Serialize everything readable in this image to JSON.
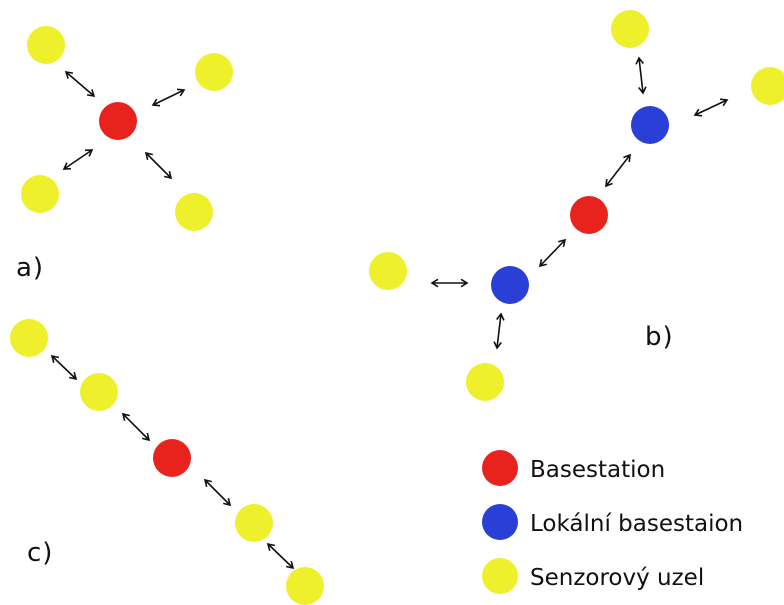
{
  "colors": {
    "basestation": "#e8231d",
    "local_basestation": "#2a3fd6",
    "sensor_node": "#eef02c"
  },
  "panels": {
    "a": {
      "label": "a)"
    },
    "b": {
      "label": "b)"
    },
    "c": {
      "label": "c)"
    }
  },
  "legend": [
    {
      "kind": "basestation",
      "label": "Basestation"
    },
    {
      "kind": "local_basestation",
      "label": "Lokální basestaion"
    },
    {
      "kind": "sensor_node",
      "label": "Senzorový uzel"
    }
  ]
}
